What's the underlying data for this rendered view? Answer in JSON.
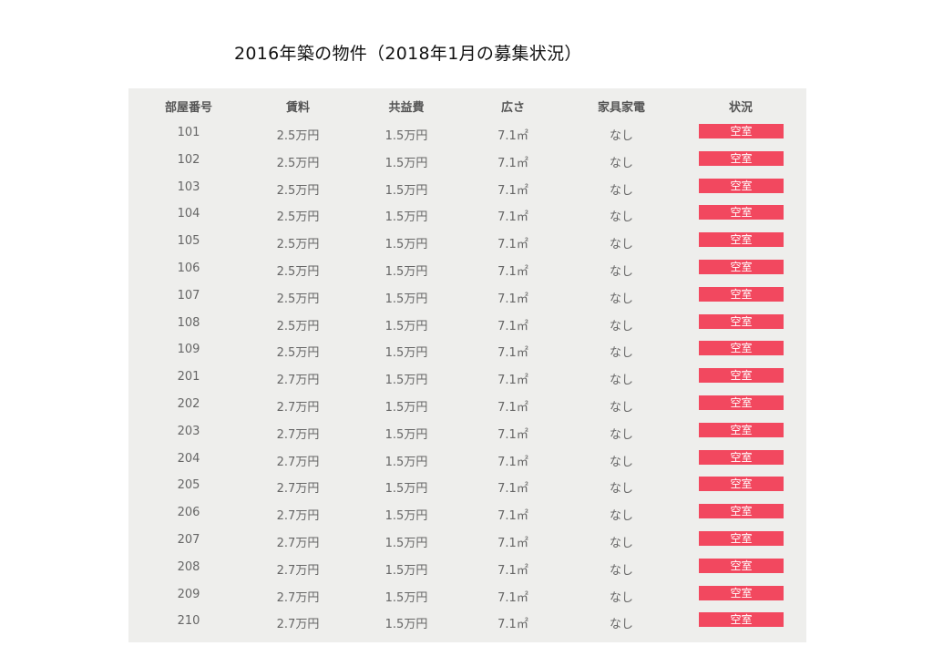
{
  "title": "2016年築の物件（2018年1月の募集状況）",
  "columns": [
    "部屋番号",
    "賃料",
    "共益費",
    "広さ",
    "家具家電",
    "状況"
  ],
  "rows": [
    [
      "101",
      "2.5万円",
      "1.5万円",
      "7.1㎡",
      "なし",
      "空室"
    ],
    [
      "102",
      "2.5万円",
      "1.5万円",
      "7.1㎡",
      "なし",
      "空室"
    ],
    [
      "103",
      "2.5万円",
      "1.5万円",
      "7.1㎡",
      "なし",
      "空室"
    ],
    [
      "104",
      "2.5万円",
      "1.5万円",
      "7.1㎡",
      "なし",
      "空室"
    ],
    [
      "105",
      "2.5万円",
      "1.5万円",
      "7.1㎡",
      "なし",
      "空室"
    ],
    [
      "106",
      "2.5万円",
      "1.5万円",
      "7.1㎡",
      "なし",
      "空室"
    ],
    [
      "107",
      "2.5万円",
      "1.5万円",
      "7.1㎡",
      "なし",
      "空室"
    ],
    [
      "108",
      "2.5万円",
      "1.5万円",
      "7.1㎡",
      "なし",
      "空室"
    ],
    [
      "109",
      "2.5万円",
      "1.5万円",
      "7.1㎡",
      "なし",
      "空室"
    ],
    [
      "201",
      "2.7万円",
      "1.5万円",
      "7.1㎡",
      "なし",
      "空室"
    ],
    [
      "202",
      "2.7万円",
      "1.5万円",
      "7.1㎡",
      "なし",
      "空室"
    ],
    [
      "203",
      "2.7万円",
      "1.5万円",
      "7.1㎡",
      "なし",
      "空室"
    ],
    [
      "204",
      "2.7万円",
      "1.5万円",
      "7.1㎡",
      "なし",
      "空室"
    ],
    [
      "205",
      "2.7万円",
      "1.5万円",
      "7.1㎡",
      "なし",
      "空室"
    ],
    [
      "206",
      "2.7万円",
      "1.5万円",
      "7.1㎡",
      "なし",
      "空室"
    ],
    [
      "207",
      "2.7万円",
      "1.5万円",
      "7.1㎡",
      "なし",
      "空室"
    ],
    [
      "208",
      "2.7万円",
      "1.5万円",
      "7.1㎡",
      "なし",
      "空室"
    ],
    [
      "209",
      "2.7万円",
      "1.5万円",
      "7.1㎡",
      "なし",
      "空室"
    ],
    [
      "210",
      "2.7万円",
      "1.5万円",
      "7.1㎡",
      "なし",
      "空室"
    ]
  ],
  "colors": {
    "panel_background": "#eeeeec",
    "status_badge": "#f2485f",
    "header_text": "#555555",
    "cell_text": "#666666"
  }
}
